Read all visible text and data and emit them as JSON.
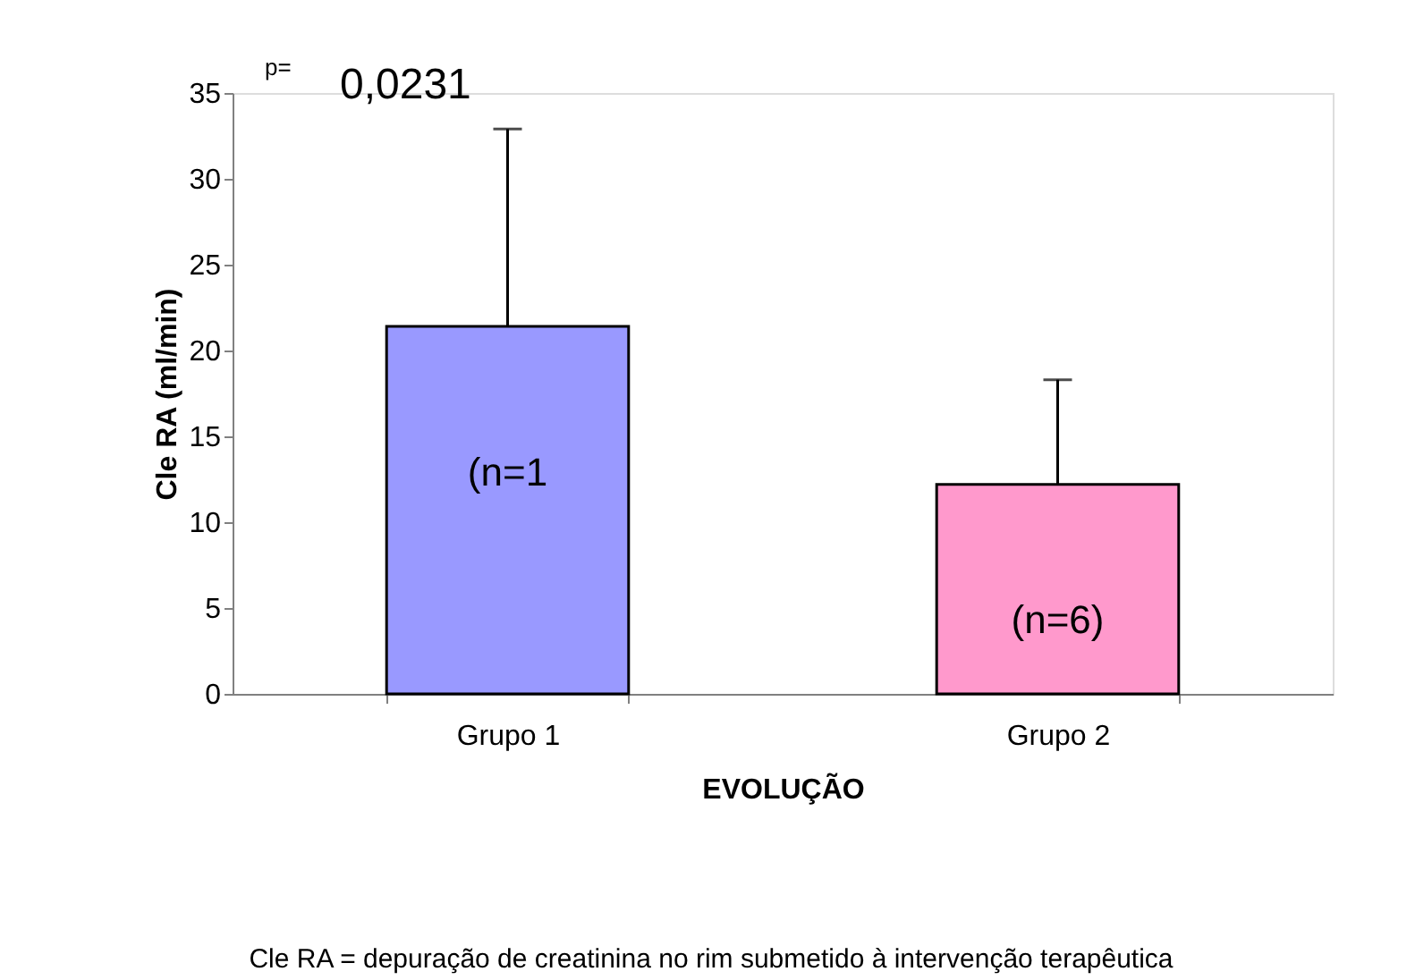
{
  "chart_data": {
    "type": "bar",
    "xlabel": "EVOLUÇÃO",
    "ylabel": "Cle RA (ml/min)",
    "categories": [
      "Grupo 1",
      "Grupo 2"
    ],
    "values": [
      21.4,
      12.2
    ],
    "colors": [
      "#9999ff",
      "#ff99cc"
    ],
    "errors": [
      [
        21.4,
        32.9
      ],
      [
        12.2,
        18.3
      ]
    ],
    "ylim": [
      0,
      35
    ],
    "yticks": [
      0,
      5,
      10,
      15,
      20,
      25,
      30,
      35
    ],
    "grid": false,
    "legend": false,
    "annotations": [
      "p=",
      "0,0231",
      "(n=1",
      "(n=6)",
      "Cle RA = depuração de creatinina no rim submetido à intervenção terapêutica"
    ]
  }
}
